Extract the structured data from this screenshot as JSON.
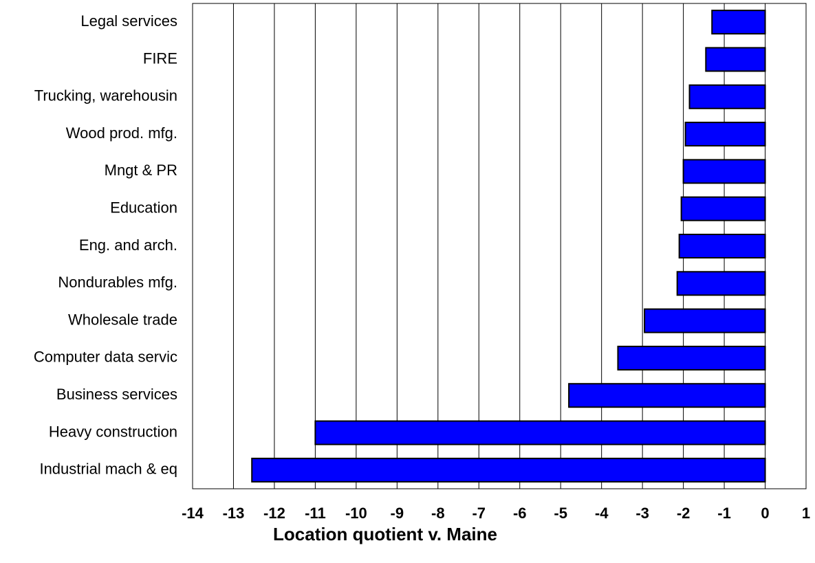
{
  "chart_data": {
    "type": "barh",
    "categories": [
      "Legal services",
      "FIRE",
      "Trucking, warehousin",
      "Wood prod. mfg.",
      "Mngt & PR",
      "Education",
      "Eng. and arch.",
      "Nondurables mfg.",
      "Wholesale trade",
      "Computer data servic",
      "Business services",
      "Heavy construction",
      "Industrial mach & eq"
    ],
    "values": [
      -1.3,
      -1.45,
      -1.85,
      -1.95,
      -2.0,
      -2.05,
      -2.1,
      -2.15,
      -2.95,
      -3.6,
      -4.8,
      -11.0,
      -12.55
    ],
    "color": "#0000ff",
    "x_label": "Location quotient v. Maine",
    "xlim": [
      -14,
      1
    ],
    "xticks": [
      -14,
      -13,
      -12,
      -11,
      -10,
      -9,
      -8,
      -7,
      -6,
      -5,
      -4,
      -3,
      -2,
      -1,
      0,
      1
    ],
    "grid": true
  }
}
